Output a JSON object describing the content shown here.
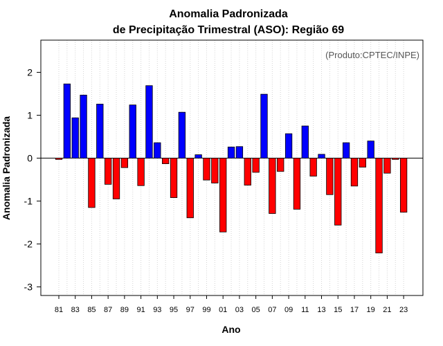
{
  "chart_data": {
    "type": "bar",
    "title": "Anomalia Padronizada",
    "subtitle": "de Precipitação Trimestral (ASO): Região 69",
    "xlabel": "Ano",
    "ylabel": "Anomalia Padronizada",
    "credit": "(Produto:CPTEC/INPE)",
    "ylim": [
      -3.2,
      2.75
    ],
    "yticks": [
      -3,
      -2,
      -1,
      0,
      1,
      2
    ],
    "x_tick_labels": [
      "81",
      "83",
      "85",
      "87",
      "89",
      "91",
      "93",
      "95",
      "97",
      "99",
      "01",
      "03",
      "05",
      "07",
      "09",
      "11",
      "13",
      "15",
      "17",
      "19",
      "21",
      "23"
    ],
    "categories": [
      "1981",
      "1982",
      "1983",
      "1984",
      "1985",
      "1986",
      "1987",
      "1988",
      "1989",
      "1990",
      "1991",
      "1992",
      "1993",
      "1994",
      "1995",
      "1996",
      "1997",
      "1998",
      "1999",
      "2000",
      "2001",
      "2002",
      "2003",
      "2004",
      "2005",
      "2006",
      "2007",
      "2008",
      "2009",
      "2010",
      "2011",
      "2012",
      "2013",
      "2014",
      "2015",
      "2016",
      "2017",
      "2018",
      "2019",
      "2020",
      "2021",
      "2022",
      "2023"
    ],
    "values": [
      -0.03,
      1.73,
      0.94,
      1.47,
      -1.15,
      1.26,
      -0.61,
      -0.95,
      -0.22,
      1.24,
      -0.64,
      1.69,
      0.36,
      -0.13,
      -0.92,
      1.07,
      -1.39,
      0.08,
      -0.51,
      -0.58,
      -1.72,
      0.26,
      0.27,
      -0.63,
      -0.33,
      1.49,
      -1.29,
      -0.31,
      0.57,
      -1.19,
      0.75,
      -0.42,
      0.09,
      -0.85,
      -1.56,
      0.36,
      -0.65,
      -0.21,
      0.4,
      -2.21,
      -0.35,
      -0.03,
      -1.26
    ],
    "colors": {
      "positive": "#0000ff",
      "negative": "#ff0000",
      "grid": "#d3d3d3",
      "zero_line": "#000000"
    },
    "grid": true
  }
}
